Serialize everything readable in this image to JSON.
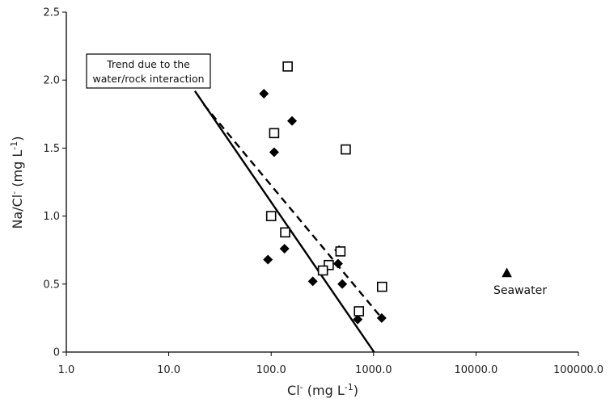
{
  "chart_data": {
    "type": "scatter",
    "title": "",
    "xlabel": "Cl",
    "xlabel_sup": "-",
    "xlabel_unit": " (mg L",
    "xlabel_unit_sup": "-1",
    "xlabel_close": ")",
    "ylabel": "Na/Cl",
    "ylabel_sup": "-",
    "ylabel_unit": " (mg L",
    "ylabel_unit_sup": "-1",
    "ylabel_close": ")",
    "x_scale": "log",
    "xlim": [
      1,
      100000
    ],
    "ylim": [
      0,
      2.5
    ],
    "grid": false,
    "x_tick_labels": [
      "1.0",
      "10.0",
      "100.0",
      "1000.0",
      "10000.0",
      "100000.0"
    ],
    "x_tick_values": [
      1,
      10,
      100,
      1000,
      10000,
      100000
    ],
    "y_tick_labels": [
      "0",
      "0.5",
      "1.0",
      "1.5",
      "2.0",
      "2.5"
    ],
    "y_tick_values": [
      0,
      0.5,
      1.0,
      1.5,
      2.0,
      2.5
    ],
    "series": [
      {
        "marker": "filled-diamond",
        "color": "#000000",
        "points": [
          {
            "x": 85,
            "y": 1.9
          },
          {
            "x": 160,
            "y": 1.7
          },
          {
            "x": 107,
            "y": 1.47
          },
          {
            "x": 93,
            "y": 0.68
          },
          {
            "x": 135,
            "y": 0.76
          },
          {
            "x": 460,
            "y": 0.75
          },
          {
            "x": 450,
            "y": 0.65
          },
          {
            "x": 255,
            "y": 0.52
          },
          {
            "x": 495,
            "y": 0.5
          },
          {
            "x": 700,
            "y": 0.24
          },
          {
            "x": 1200,
            "y": 0.25
          }
        ]
      },
      {
        "marker": "open-square",
        "color": "#000000",
        "points": [
          {
            "x": 145,
            "y": 2.1
          },
          {
            "x": 107,
            "y": 1.61
          },
          {
            "x": 535,
            "y": 1.49
          },
          {
            "x": 100,
            "y": 1.0
          },
          {
            "x": 137,
            "y": 0.88
          },
          {
            "x": 475,
            "y": 0.74
          },
          {
            "x": 365,
            "y": 0.64
          },
          {
            "x": 320,
            "y": 0.6
          },
          {
            "x": 1210,
            "y": 0.48
          },
          {
            "x": 720,
            "y": 0.3
          }
        ]
      },
      {
        "marker": "filled-triangle",
        "color": "#000000",
        "points": [
          {
            "x": 20000,
            "y": 0.58
          }
        ]
      }
    ],
    "trend_lines": [
      {
        "style": "solid",
        "from": {
          "x": 18,
          "y": 1.92
        },
        "to": {
          "x": 1010,
          "y": 0
        }
      },
      {
        "style": "dashed",
        "from": {
          "x": 22,
          "y": 1.82
        },
        "to": {
          "x": 1200,
          "y": 0.25
        }
      }
    ],
    "annotations": {
      "trend_box_line1": "Trend due to the",
      "trend_box_line2": "water/rock interaction",
      "seawater_label": "Seawater"
    }
  }
}
